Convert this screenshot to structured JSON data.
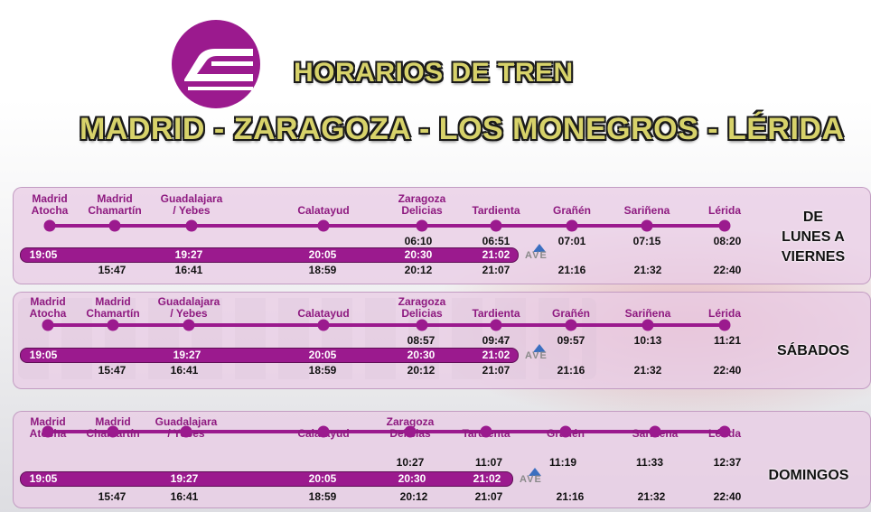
{
  "title": "HORARIOS DE TREN",
  "route": "MADRID - ZARAGOZA - LOS MONEGROS - LÉRIDA",
  "logo_icon": "train-icon",
  "colors": {
    "primary": "#9b1a8e",
    "title_fill": "#d7d26a",
    "ave_blue": "#3b6fc0"
  },
  "ave_label": "AVE",
  "panels": [
    {
      "day_lines": [
        "DE",
        "LUNES A",
        "VIERNES"
      ],
      "stations": [
        "Madrid\nAtocha",
        "Madrid\nChamartín",
        "Guadalajara\n/ Yebes",
        "Calatayud",
        "Zaragoza\nDelicias",
        "Tardienta",
        "Grañén",
        "Sariñena",
        "Lérida"
      ],
      "upper_times": [
        "06:10",
        "06:51",
        "07:01",
        "07:15",
        "08:20"
      ],
      "bar_times": [
        "19:05",
        "19:27",
        "20:05",
        "20:30",
        "21:02"
      ],
      "lower_times": [
        "15:47",
        "16:41",
        "18:59",
        "20:12",
        "21:07",
        "21:16",
        "21:32",
        "22:40"
      ]
    },
    {
      "day_lines": [
        "SÁBADOS"
      ],
      "stations": [
        "Madrid\nAtocha",
        "Madrid\nChamartín",
        "Guadalajara\n/ Yebes",
        "Calatayud",
        "Zaragoza\nDelicias",
        "Tardienta",
        "Grañén",
        "Sariñena",
        "Lérida"
      ],
      "upper_times": [
        "08:57",
        "09:47",
        "09:57",
        "10:13",
        "11:21"
      ],
      "bar_times": [
        "19:05",
        "19:27",
        "20:05",
        "20:30",
        "21:02"
      ],
      "lower_times": [
        "15:47",
        "16:41",
        "18:59",
        "20:12",
        "21:07",
        "21:16",
        "21:32",
        "22:40"
      ]
    },
    {
      "day_lines": [
        "DOMINGOS"
      ],
      "stations": [
        "Madrid\nAtocha",
        "Madrid\nChamartín",
        "Guadalajara\n/ Yebes",
        "Calatayud",
        "Zaragoza\nDelicias",
        "Tardienta",
        "Grañén",
        "Sariñena",
        "Lérida"
      ],
      "upper_times": [
        "10:27",
        "11:07",
        "11:19",
        "11:33",
        "12:37"
      ],
      "bar_times": [
        "19:05",
        "19:27",
        "20:05",
        "20:30",
        "21:02"
      ],
      "lower_times": [
        "15:47",
        "16:41",
        "18:59",
        "20:12",
        "21:07",
        "21:16",
        "21:32",
        "22:40"
      ]
    }
  ]
}
